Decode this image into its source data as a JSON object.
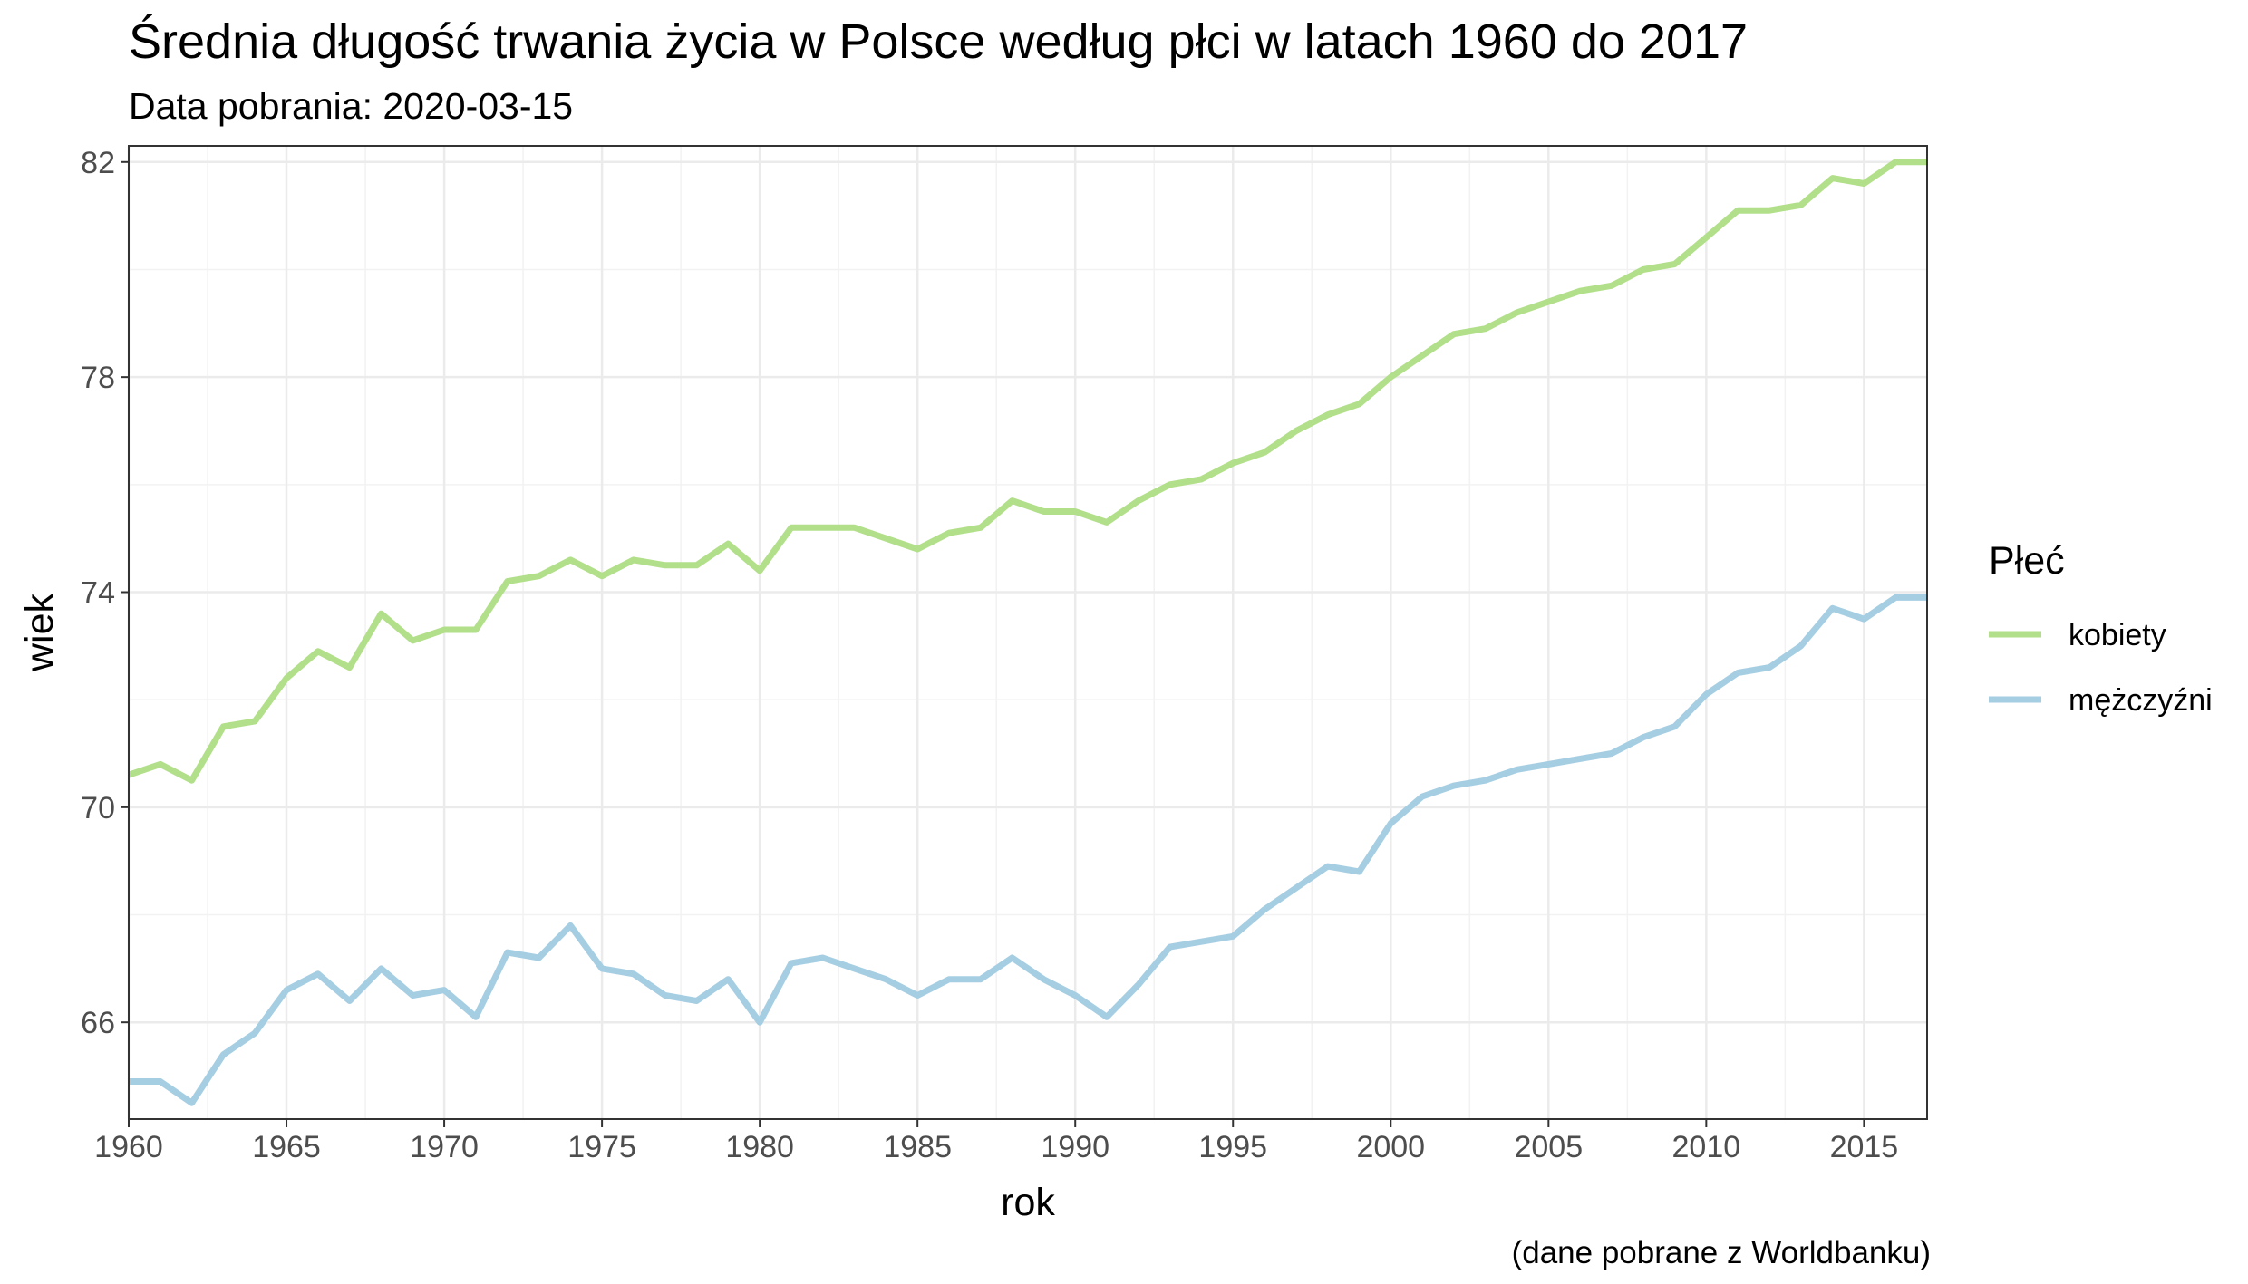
{
  "chart_data": {
    "type": "line",
    "title": "Średnia długość trwania życia w Polsce według płci w latach 1960 do 2017",
    "subtitle": "Data pobrania: 2020-03-15",
    "caption": "(dane pobrane z Worldbanku)",
    "xlabel": "rok",
    "ylabel": "wiek",
    "xlim": [
      1960,
      2017
    ],
    "ylim": [
      64.2,
      82.3
    ],
    "x_ticks": [
      1960,
      1965,
      1970,
      1975,
      1980,
      1985,
      1990,
      1995,
      2000,
      2005,
      2010,
      2015
    ],
    "y_ticks": [
      66,
      70,
      74,
      78,
      82
    ],
    "grid": true,
    "legend_title": "Płeć",
    "legend_position": "right",
    "x": [
      1960,
      1961,
      1962,
      1963,
      1964,
      1965,
      1966,
      1967,
      1968,
      1969,
      1970,
      1971,
      1972,
      1973,
      1974,
      1975,
      1976,
      1977,
      1978,
      1979,
      1980,
      1981,
      1982,
      1983,
      1984,
      1985,
      1986,
      1987,
      1988,
      1989,
      1990,
      1991,
      1992,
      1993,
      1994,
      1995,
      1996,
      1997,
      1998,
      1999,
      2000,
      2001,
      2002,
      2003,
      2004,
      2005,
      2006,
      2007,
      2008,
      2009,
      2010,
      2011,
      2012,
      2013,
      2014,
      2015,
      2016,
      2017
    ],
    "series": [
      {
        "name": "kobiety",
        "color": "#b2df8a",
        "values": [
          70.6,
          70.8,
          70.5,
          71.5,
          71.6,
          72.4,
          72.9,
          72.6,
          73.6,
          73.1,
          73.3,
          73.3,
          74.2,
          74.3,
          74.6,
          74.3,
          74.6,
          74.5,
          74.5,
          74.9,
          74.4,
          75.2,
          75.2,
          75.2,
          75.0,
          74.8,
          75.1,
          75.2,
          75.7,
          75.5,
          75.5,
          75.3,
          75.7,
          76.0,
          76.1,
          76.4,
          76.6,
          77.0,
          77.3,
          77.5,
          78.0,
          78.4,
          78.8,
          78.9,
          79.2,
          79.4,
          79.6,
          79.7,
          80.0,
          80.1,
          80.6,
          81.1,
          81.1,
          81.2,
          81.7,
          81.6,
          82.0,
          82.0
        ]
      },
      {
        "name": "mężczyźni",
        "color": "#a6cee3",
        "values": [
          64.9,
          64.9,
          64.5,
          65.4,
          65.8,
          66.6,
          66.9,
          66.4,
          67.0,
          66.5,
          66.6,
          66.1,
          67.3,
          67.2,
          67.8,
          67.0,
          66.9,
          66.5,
          66.4,
          66.8,
          66.0,
          67.1,
          67.2,
          67.0,
          66.8,
          66.5,
          66.8,
          66.8,
          67.2,
          66.8,
          66.5,
          66.1,
          66.7,
          67.4,
          67.5,
          67.6,
          68.1,
          68.5,
          68.9,
          68.8,
          69.7,
          70.2,
          70.4,
          70.5,
          70.7,
          70.8,
          70.9,
          71.0,
          71.3,
          71.5,
          72.1,
          72.5,
          72.6,
          73.0,
          73.7,
          73.5,
          73.9,
          73.9
        ]
      }
    ]
  }
}
